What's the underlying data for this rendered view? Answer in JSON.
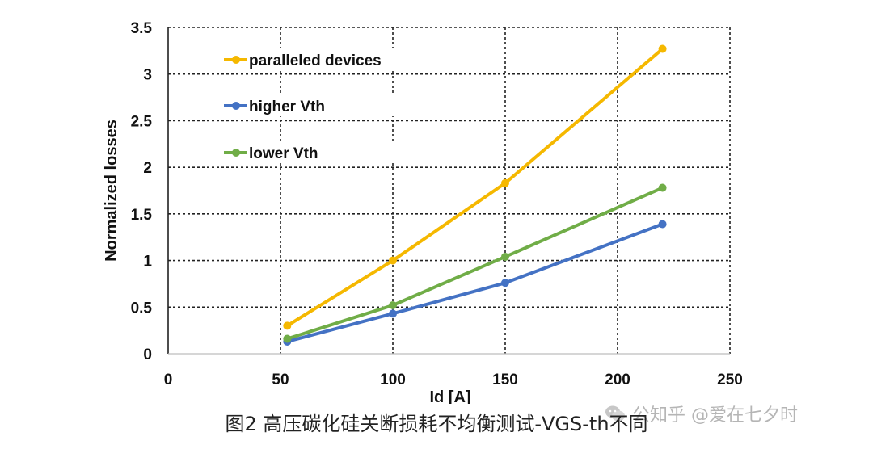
{
  "chart_data": {
    "type": "line",
    "xlabel": "Id [A]",
    "ylabel": "Normalized losses",
    "xlim": [
      0,
      250
    ],
    "ylim": [
      0,
      3.5
    ],
    "xticks": [
      "0",
      "50",
      "100",
      "150",
      "200",
      "250"
    ],
    "yticks": [
      "0",
      "0.5",
      "1",
      "1.5",
      "2",
      "2.5",
      "3",
      "3.5"
    ],
    "grid": "dashed",
    "legend_position": "top-left",
    "series": [
      {
        "name": "paralleled devices",
        "color": "#f5b800",
        "x": [
          53,
          100,
          150,
          220
        ],
        "y": [
          0.3,
          1.0,
          1.83,
          3.27
        ]
      },
      {
        "name": "higher Vth",
        "color": "#4472c4",
        "x": [
          53,
          100,
          150,
          220
        ],
        "y": [
          0.13,
          0.43,
          0.76,
          1.39
        ]
      },
      {
        "name": "lower Vth",
        "color": "#70ad47",
        "x": [
          53,
          100,
          150,
          220
        ],
        "y": [
          0.16,
          0.52,
          1.04,
          1.78
        ]
      }
    ]
  },
  "caption": "图2 高压碳化硅关断损耗不均衡测试-VGS-th不同",
  "watermark": {
    "text": "公知乎 @爱在七夕时",
    "icon": "wechat-icon"
  }
}
